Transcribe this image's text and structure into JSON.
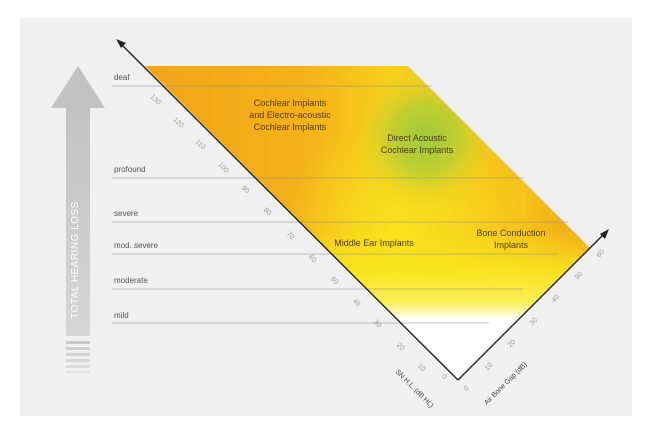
{
  "hearing_loss_levels": [
    {
      "key": "deaf",
      "label": "deaf"
    },
    {
      "key": "profound",
      "label": "profound"
    },
    {
      "key": "severe",
      "label": "severe"
    },
    {
      "key": "mod_severe",
      "label": "mod. severe"
    },
    {
      "key": "moderate",
      "label": "moderate"
    },
    {
      "key": "mild",
      "label": "mild"
    }
  ],
  "regions": {
    "cochlear": {
      "line1": "Cochlear Implants",
      "line2": "and Electro-acoustic",
      "line3": "Cochlear Implants"
    },
    "daci": {
      "line1": "Direct Acoustic",
      "line2": "Cochlear Implants"
    },
    "middle_ear": {
      "line1": "Middle Ear Implants"
    },
    "bone": {
      "line1": "Bone Conduction",
      "line2": "Implants"
    }
  },
  "sn_axis": {
    "title": "SN H.L. (dB HL)",
    "ticks": [
      "0",
      "10",
      "20",
      "30",
      "40",
      "50",
      "60",
      "70",
      "80",
      "90",
      "100",
      "110",
      "120",
      "130"
    ]
  },
  "abg_axis": {
    "title": "Air Bone Gap (dB)",
    "ticks": [
      "0",
      "10",
      "20",
      "30",
      "40",
      "50",
      "60"
    ]
  },
  "total_arrow": {
    "label": "TOTAL HEARING LOSS"
  },
  "colors": {
    "background": "#f0f0f1",
    "orange": "#f2a516",
    "yellow": "#f8e21a",
    "green": "#9cc33b",
    "arrow_gray": "#c8c8c8",
    "axis_line": "#222222",
    "level_line": "#8a8a8a"
  }
}
